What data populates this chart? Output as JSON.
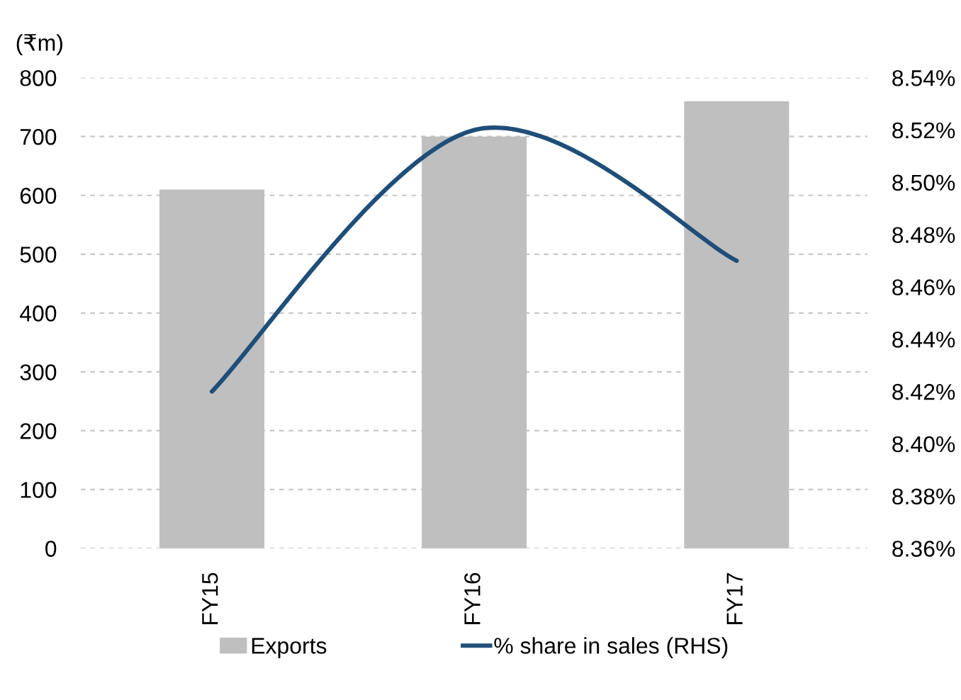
{
  "chart_data": {
    "type": "bar",
    "ylabel": "(₹m)",
    "categories": [
      "FY15",
      "FY16",
      "FY17"
    ],
    "series": [
      {
        "name": "Exports",
        "color": "#bfbfbf",
        "values": [
          610,
          700,
          760
        ]
      },
      {
        "name": "% share in sales (RHS)",
        "type": "line",
        "axis": "y2",
        "color": "#1f4e79",
        "values": [
          8.42,
          8.52,
          8.47
        ]
      }
    ],
    "ylim": [
      0,
      800
    ],
    "yticks": [
      0,
      100,
      200,
      300,
      400,
      500,
      600,
      700,
      800
    ],
    "y2lim": [
      8.36,
      8.54
    ],
    "y2ticks": [
      {
        "value": 8.36,
        "label": "8.36%"
      },
      {
        "value": 8.38,
        "label": "8.38%"
      },
      {
        "value": 8.4,
        "label": "8.40%"
      },
      {
        "value": 8.42,
        "label": "8.42%"
      },
      {
        "value": 8.44,
        "label": "8.44%"
      },
      {
        "value": 8.46,
        "label": "8.46%"
      },
      {
        "value": 8.48,
        "label": "8.48%"
      },
      {
        "value": 8.5,
        "label": "8.50%"
      },
      {
        "value": 8.52,
        "label": "8.52%"
      },
      {
        "value": 8.54,
        "label": "8.54%"
      }
    ],
    "grid": "y",
    "legend": "bottom",
    "marker": "none",
    "line_style": "solid"
  }
}
